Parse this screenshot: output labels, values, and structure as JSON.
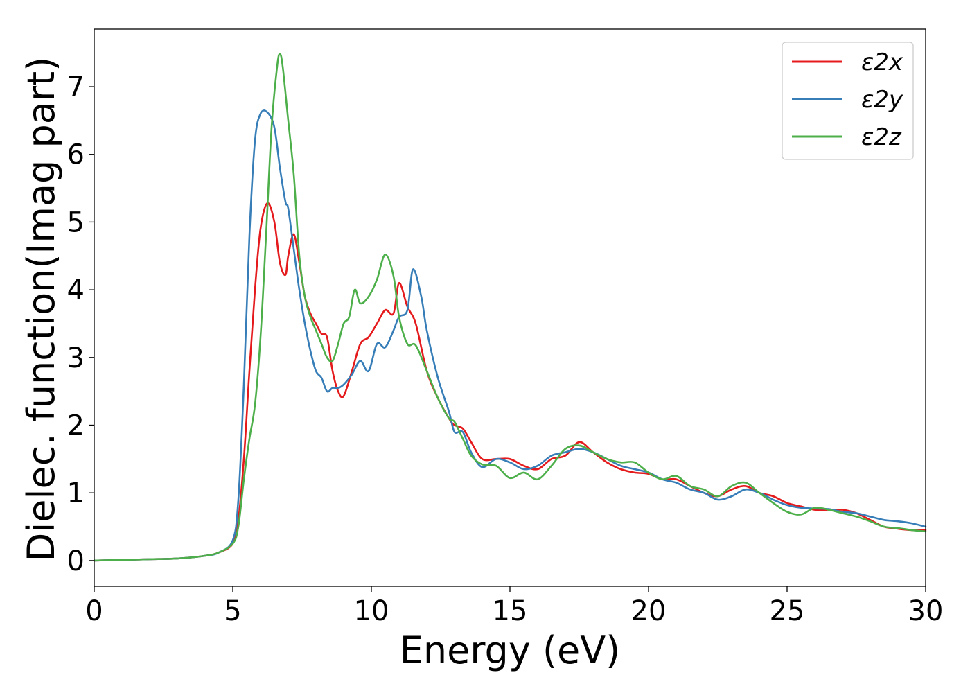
{
  "chart_data": {
    "type": "line",
    "title": "",
    "xlabel": "Energy (eV)",
    "ylabel": "Dielec. function(Imag part)",
    "xlim": [
      0,
      30
    ],
    "ylim": [
      -0.38,
      7.85
    ],
    "xticks": [
      0,
      5,
      10,
      15,
      20,
      25,
      30
    ],
    "yticks": [
      0,
      1,
      2,
      3,
      4,
      5,
      6,
      7
    ],
    "grid": false,
    "legend_position": "top-right",
    "series": [
      {
        "name": "ε2x",
        "color": "#e41a1c",
        "x": [
          0,
          1,
          2,
          3,
          4,
          4.5,
          5,
          5.2,
          5.4,
          5.6,
          5.8,
          6.0,
          6.25,
          6.5,
          6.7,
          6.9,
          7.0,
          7.2,
          7.4,
          7.6,
          7.8,
          8.0,
          8.2,
          8.4,
          8.6,
          8.8,
          9.0,
          9.3,
          9.6,
          9.9,
          10.2,
          10.5,
          10.8,
          11.0,
          11.3,
          11.6,
          12.0,
          12.4,
          12.8,
          13.0,
          13.3,
          13.6,
          14.0,
          14.5,
          15.0,
          15.5,
          16.0,
          16.5,
          17.0,
          17.5,
          18.0,
          18.5,
          19.0,
          19.5,
          20.0,
          20.5,
          21.0,
          21.5,
          22.0,
          22.5,
          23.0,
          23.5,
          24.0,
          24.5,
          25.0,
          25.5,
          26.0,
          26.5,
          27.0,
          27.5,
          28.0,
          28.5,
          29.0,
          29.5,
          30.0
        ],
        "values": [
          0.0,
          0.01,
          0.02,
          0.03,
          0.07,
          0.12,
          0.25,
          0.6,
          1.5,
          2.8,
          4.0,
          4.9,
          5.28,
          5.0,
          4.4,
          4.22,
          4.5,
          4.82,
          4.4,
          3.9,
          3.65,
          3.5,
          3.35,
          3.3,
          2.8,
          2.5,
          2.43,
          2.8,
          3.2,
          3.3,
          3.5,
          3.7,
          3.65,
          4.1,
          3.75,
          3.5,
          2.8,
          2.4,
          2.1,
          2.0,
          1.95,
          1.75,
          1.5,
          1.5,
          1.5,
          1.4,
          1.35,
          1.5,
          1.55,
          1.75,
          1.6,
          1.45,
          1.35,
          1.3,
          1.28,
          1.2,
          1.2,
          1.1,
          1.0,
          0.95,
          1.05,
          1.1,
          1.0,
          0.95,
          0.85,
          0.8,
          0.75,
          0.75,
          0.75,
          0.7,
          0.6,
          0.5,
          0.47,
          0.45,
          0.45
        ]
      },
      {
        "name": "ε2y",
        "color": "#377eb8",
        "x": [
          0,
          1,
          2,
          3,
          4,
          4.5,
          5,
          5.2,
          5.4,
          5.6,
          5.8,
          6.0,
          6.25,
          6.5,
          6.7,
          6.9,
          7.0,
          7.2,
          7.4,
          7.6,
          7.8,
          8.0,
          8.2,
          8.4,
          8.6,
          8.8,
          9.0,
          9.3,
          9.6,
          9.9,
          10.2,
          10.5,
          10.8,
          11.0,
          11.3,
          11.5,
          11.8,
          12.0,
          12.4,
          12.8,
          13.0,
          13.3,
          13.6,
          14.0,
          14.5,
          15.0,
          15.5,
          16.0,
          16.5,
          17.0,
          17.5,
          18.0,
          18.5,
          19.0,
          19.5,
          20.0,
          20.5,
          21.0,
          21.5,
          22.0,
          22.5,
          23.0,
          23.5,
          24.0,
          24.5,
          25.0,
          25.5,
          26.0,
          26.5,
          27.0,
          27.5,
          28.0,
          28.5,
          29.0,
          29.5,
          30.0
        ],
        "values": [
          0.0,
          0.01,
          0.02,
          0.03,
          0.07,
          0.12,
          0.3,
          0.9,
          2.6,
          4.8,
          6.2,
          6.6,
          6.62,
          6.4,
          5.8,
          5.3,
          5.2,
          4.6,
          4.0,
          3.5,
          3.1,
          2.8,
          2.7,
          2.5,
          2.55,
          2.55,
          2.6,
          2.75,
          2.95,
          2.8,
          3.2,
          3.15,
          3.4,
          3.6,
          3.7,
          4.3,
          3.9,
          3.4,
          2.7,
          2.2,
          1.9,
          1.9,
          1.6,
          1.38,
          1.5,
          1.45,
          1.35,
          1.4,
          1.55,
          1.6,
          1.65,
          1.6,
          1.5,
          1.4,
          1.35,
          1.3,
          1.2,
          1.15,
          1.05,
          1.0,
          0.9,
          0.95,
          1.05,
          1.0,
          0.9,
          0.82,
          0.78,
          0.77,
          0.76,
          0.72,
          0.7,
          0.65,
          0.6,
          0.58,
          0.55,
          0.5
        ]
      },
      {
        "name": "ε2z",
        "color": "#4daf4a",
        "x": [
          0,
          1,
          2,
          3,
          4,
          4.5,
          5,
          5.2,
          5.4,
          5.6,
          5.8,
          6.0,
          6.2,
          6.4,
          6.6,
          6.7,
          6.8,
          7.0,
          7.2,
          7.4,
          7.6,
          7.8,
          8.0,
          8.2,
          8.4,
          8.6,
          8.8,
          9.0,
          9.2,
          9.4,
          9.6,
          9.9,
          10.2,
          10.5,
          10.8,
          11.0,
          11.3,
          11.6,
          12.0,
          12.4,
          12.8,
          13.0,
          13.3,
          13.6,
          14.0,
          14.5,
          15.0,
          15.5,
          16.0,
          16.5,
          17.0,
          17.5,
          18.0,
          18.5,
          19.0,
          19.5,
          20.0,
          20.5,
          21.0,
          21.5,
          22.0,
          22.5,
          23.0,
          23.5,
          24.0,
          24.5,
          25.0,
          25.5,
          26.0,
          26.5,
          27.0,
          27.5,
          28.0,
          28.5,
          29.0,
          29.5,
          30.0
        ],
        "values": [
          0.0,
          0.01,
          0.02,
          0.03,
          0.07,
          0.12,
          0.25,
          0.5,
          1.2,
          1.8,
          2.3,
          3.3,
          4.8,
          6.4,
          7.3,
          7.48,
          7.3,
          6.5,
          5.7,
          4.5,
          3.9,
          3.6,
          3.4,
          3.2,
          3.0,
          2.95,
          3.2,
          3.5,
          3.6,
          4.0,
          3.8,
          3.9,
          4.15,
          4.52,
          4.2,
          3.6,
          3.2,
          3.18,
          2.8,
          2.4,
          2.1,
          2.05,
          1.8,
          1.55,
          1.42,
          1.4,
          1.22,
          1.3,
          1.2,
          1.4,
          1.65,
          1.7,
          1.6,
          1.5,
          1.45,
          1.45,
          1.3,
          1.2,
          1.25,
          1.1,
          1.05,
          0.95,
          1.1,
          1.15,
          1.0,
          0.85,
          0.72,
          0.68,
          0.78,
          0.75,
          0.7,
          0.65,
          0.58,
          0.5,
          0.48,
          0.45,
          0.43
        ]
      }
    ]
  }
}
